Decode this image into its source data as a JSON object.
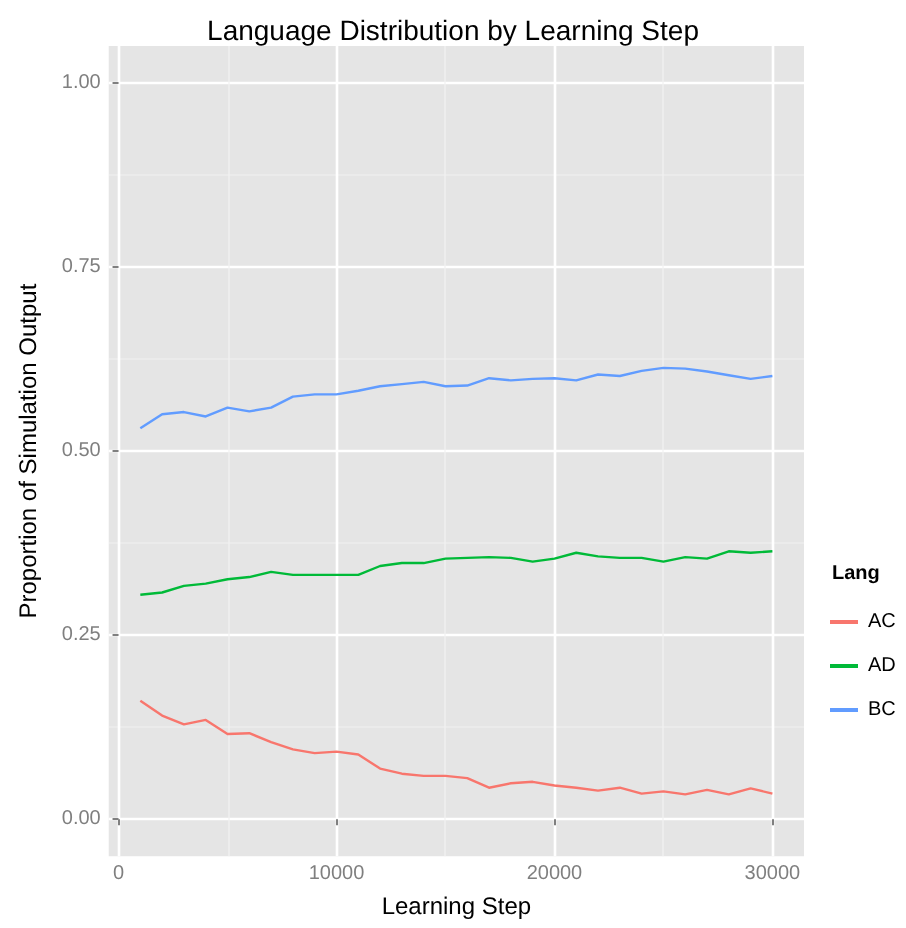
{
  "chart_data": {
    "type": "line",
    "title": "Language Distribution by Learning Step",
    "xlabel": "Learning Step",
    "ylabel": "Proportion of Simulation Output",
    "legend_title": "Lang",
    "legend": "right",
    "grid": true,
    "marker": "none",
    "x": [
      1000,
      2000,
      3000,
      4000,
      5000,
      6000,
      7000,
      8000,
      9000,
      10000,
      11000,
      12000,
      13000,
      14000,
      15000,
      16000,
      17000,
      18000,
      19000,
      20000,
      21000,
      22000,
      23000,
      24000,
      25000,
      26000,
      27000,
      28000,
      29000,
      30000
    ],
    "xlim": [
      -450,
      31450
    ],
    "xticks": [
      0,
      10000,
      20000,
      30000
    ],
    "ylim": [
      -0.05,
      1.05
    ],
    "yticks": [
      {
        "value": 0,
        "label": "0.00"
      },
      {
        "value": 0.25,
        "label": "0.25"
      },
      {
        "value": 0.5,
        "label": "0.50"
      },
      {
        "value": 0.75,
        "label": "0.75"
      },
      {
        "value": 1,
        "label": "1.00"
      }
    ],
    "series": [
      {
        "name": "AC",
        "color": "#f8766d",
        "values": [
          0.161,
          0.141,
          0.129,
          0.135,
          0.116,
          0.117,
          0.105,
          0.095,
          0.09,
          0.092,
          0.088,
          0.069,
          0.062,
          0.059,
          0.059,
          0.056,
          0.043,
          0.049,
          0.051,
          0.046,
          0.043,
          0.039,
          0.043,
          0.035,
          0.038,
          0.034,
          0.04,
          0.034,
          0.042,
          0.035
        ]
      },
      {
        "name": "AD",
        "color": "#00ba38",
        "values": [
          0.305,
          0.308,
          0.317,
          0.32,
          0.326,
          0.329,
          0.336,
          0.332,
          0.332,
          0.332,
          0.332,
          0.344,
          0.348,
          0.348,
          0.354,
          0.355,
          0.356,
          0.355,
          0.35,
          0.354,
          0.362,
          0.357,
          0.355,
          0.355,
          0.35,
          0.356,
          0.354,
          0.364,
          0.362,
          0.364
        ]
      },
      {
        "name": "BC",
        "color": "#619cff",
        "values": [
          0.531,
          0.55,
          0.553,
          0.547,
          0.559,
          0.554,
          0.559,
          0.574,
          0.577,
          0.577,
          0.582,
          0.588,
          0.591,
          0.594,
          0.588,
          0.589,
          0.599,
          0.596,
          0.598,
          0.599,
          0.596,
          0.604,
          0.602,
          0.609,
          0.613,
          0.612,
          0.608,
          0.603,
          0.598,
          0.602
        ]
      }
    ]
  }
}
